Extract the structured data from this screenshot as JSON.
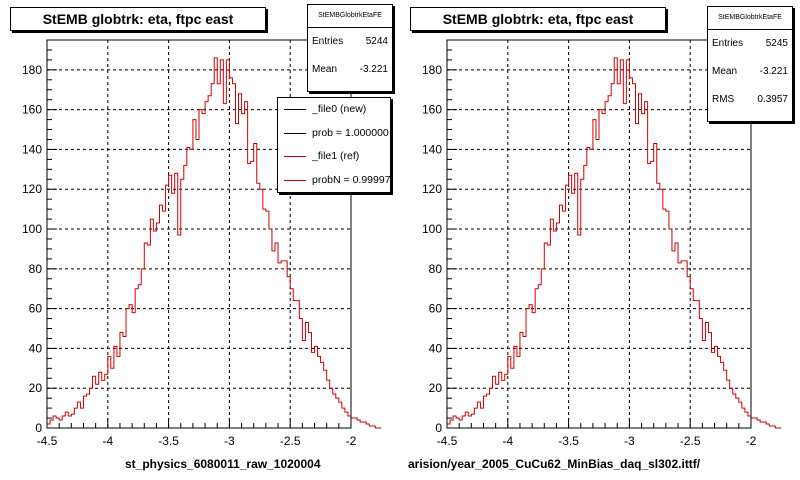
{
  "panels": [
    {
      "title": "StEMB globtrk: eta, ftpc east",
      "xlabel": "st_physics_6080011_raw_1020004",
      "stats": {
        "name": "StEMBGlobtrkEtaFE",
        "rows": [
          {
            "key": "Entries",
            "value": "5244"
          },
          {
            "key": "Mean",
            "value": "-3.221"
          }
        ]
      },
      "legend": [
        {
          "label": "_file0 (new)",
          "color": "#000000"
        },
        {
          "label": "prob = 1.000000",
          "color": "#000000"
        },
        {
          "label": "_file1 (ref)",
          "color": "#cc0000"
        },
        {
          "label": "probN = 0.999970",
          "color": "#cc0000"
        }
      ]
    },
    {
      "title": "StEMB globtrk: eta, ftpc east",
      "xlabel": "arision/year_2005_CuCu62_MinBias_daq_sl302.ittf/",
      "stats": {
        "name": "StEMBGlobtrkEtaFE",
        "rows": [
          {
            "key": "Entries",
            "value": "5245"
          },
          {
            "key": "Mean",
            "value": "-3.221"
          },
          {
            "key": "RMS",
            "value": "0.3957"
          }
        ]
      },
      "legend": []
    }
  ],
  "chart_data": [
    {
      "type": "histogram",
      "title": "StEMB globtrk: eta, ftpc east",
      "xlabel": "st_physics_6080011_raw_1020004",
      "ylabel": "",
      "xlim": [
        -4.5,
        -2.0
      ],
      "ylim": [
        0,
        195
      ],
      "xticks": [
        "-4.5",
        "-4",
        "-3.5",
        "-3",
        "-2.5",
        "-2"
      ],
      "yticks": [
        "0",
        "20",
        "40",
        "60",
        "80",
        "100",
        "120",
        "140",
        "160",
        "180"
      ],
      "grid": true,
      "line_color": "#cc0000",
      "bin_width": 0.025,
      "x_start": -4.5,
      "values": [
        2,
        4,
        6,
        5,
        4,
        6,
        8,
        6,
        7,
        10,
        13,
        10,
        16,
        17,
        20,
        26,
        22,
        28,
        24,
        27,
        36,
        30,
        41,
        36,
        48,
        46,
        60,
        62,
        58,
        70,
        72,
        80,
        93,
        92,
        105,
        99,
        103,
        112,
        109,
        122,
        127,
        118,
        128,
        97,
        125,
        132,
        141,
        140,
        155,
        145,
        160,
        158,
        164,
        167,
        173,
        186,
        173,
        185,
        163,
        185,
        176,
        173,
        153,
        168,
        158,
        164,
        133,
        134,
        143,
        123,
        120,
        110,
        109,
        100,
        89,
        93,
        83,
        84,
        84,
        76,
        70,
        64,
        64,
        55,
        44,
        53,
        48,
        38,
        41,
        36,
        33,
        29,
        24,
        20,
        17,
        15,
        13,
        10,
        8,
        6,
        5,
        5,
        4,
        3,
        3,
        2,
        1,
        1,
        0,
        0
      ]
    },
    {
      "type": "histogram",
      "title": "StEMB globtrk: eta, ftpc east",
      "xlabel": "arision/year_2005_CuCu62_MinBias_daq_sl302.ittf/",
      "ylabel": "",
      "xlim": [
        -4.5,
        -2.0
      ],
      "ylim": [
        0,
        195
      ],
      "xticks": [
        "-4.5",
        "-4",
        "-3.5",
        "-3",
        "-2.5",
        "-2"
      ],
      "yticks": [
        "0",
        "20",
        "40",
        "60",
        "80",
        "100",
        "120",
        "140",
        "160",
        "180"
      ],
      "grid": true,
      "line_color": "#cc0000",
      "bin_width": 0.025,
      "x_start": -4.5,
      "values": [
        2,
        4,
        6,
        5,
        4,
        6,
        8,
        6,
        7,
        10,
        13,
        10,
        16,
        17,
        20,
        26,
        22,
        28,
        24,
        27,
        36,
        30,
        41,
        36,
        48,
        46,
        60,
        62,
        58,
        70,
        72,
        80,
        93,
        92,
        105,
        99,
        103,
        112,
        109,
        122,
        127,
        118,
        128,
        97,
        125,
        132,
        141,
        140,
        155,
        145,
        160,
        158,
        164,
        167,
        173,
        186,
        173,
        185,
        163,
        185,
        176,
        173,
        153,
        168,
        158,
        164,
        133,
        134,
        143,
        123,
        120,
        110,
        109,
        100,
        89,
        93,
        83,
        84,
        84,
        76,
        70,
        64,
        64,
        55,
        44,
        53,
        48,
        38,
        41,
        36,
        33,
        29,
        24,
        20,
        17,
        15,
        13,
        10,
        8,
        6,
        5,
        5,
        4,
        3,
        3,
        2,
        1,
        1,
        0,
        0
      ]
    }
  ]
}
